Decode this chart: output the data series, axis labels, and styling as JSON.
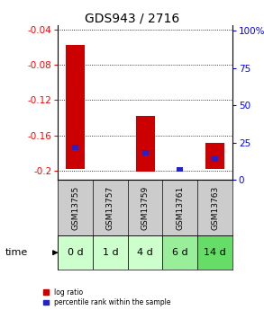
{
  "title": "GDS943 / 2716",
  "samples": [
    "GSM13755",
    "GSM13757",
    "GSM13759",
    "GSM13761",
    "GSM13763"
  ],
  "time_labels": [
    "0 d",
    "1 d",
    "4 d",
    "6 d",
    "14 d"
  ],
  "log_ratio_bottoms": [
    -0.198,
    -0.2005,
    -0.2005,
    -0.201,
    -0.198
  ],
  "log_ratio_tops": [
    -0.058,
    -0.2005,
    -0.138,
    -0.201,
    -0.168
  ],
  "percentile_ranks": [
    22,
    0,
    18,
    7,
    14
  ],
  "ylim_left": [
    -0.21,
    -0.035
  ],
  "ylim_right": [
    0,
    104
  ],
  "yticks_left": [
    -0.2,
    -0.16,
    -0.12,
    -0.08,
    -0.04
  ],
  "yticks_right": [
    0,
    25,
    50,
    75,
    100
  ],
  "ytick_labels_left": [
    "-0.2",
    "-0.16",
    "-0.12",
    "-0.08",
    "-0.04"
  ],
  "ytick_labels_right": [
    "0",
    "25",
    "50",
    "75",
    "100%"
  ],
  "bar_color": "#cc0000",
  "percentile_color": "#2222cc",
  "sample_bg_color": "#cccccc",
  "time_bg_colors": [
    "#ccffcc",
    "#ccffcc",
    "#ccffcc",
    "#99ee99",
    "#66dd66"
  ],
  "legend_log_ratio": "log ratio",
  "legend_percentile": "percentile rank within the sample",
  "bar_width": 0.55,
  "title_fontsize": 10,
  "tick_fontsize": 7.5,
  "sample_fontsize": 6.5,
  "time_fontsize": 8
}
